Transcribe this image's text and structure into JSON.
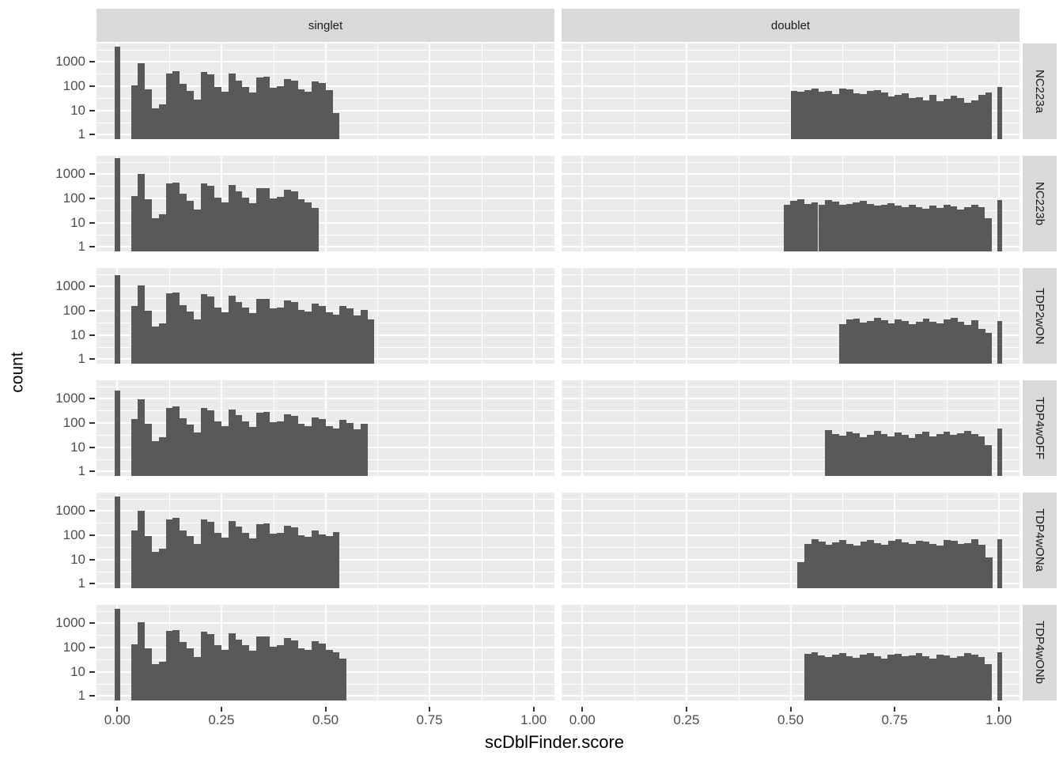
{
  "figure": {
    "x_axis_title": "scDblFinder.score",
    "y_axis_title": "count"
  },
  "chart_data": {
    "type": "bar",
    "subtype": "faceted-histogram-grid",
    "xlabel": "scDblFinder.score",
    "ylabel": "count",
    "y_scale": "log10",
    "grid": "on",
    "legend": "none",
    "col_facets": [
      "singlet",
      "doublet"
    ],
    "row_facets": [
      "NC223a",
      "NC223b",
      "TDP2wON",
      "TDP4wOFF",
      "TDP4wONa",
      "TDP4wONb"
    ],
    "x_ticks": [
      "0.00",
      "0.25",
      "0.50",
      "0.75",
      "1.00"
    ],
    "x_tick_values": [
      0,
      0.25,
      0.5,
      0.75,
      1.0
    ],
    "y_ticks": [
      "1000",
      "100",
      "10",
      "1"
    ],
    "y_tick_values": [
      1000,
      100,
      10,
      1
    ],
    "x_domain": [
      -0.05,
      1.05
    ],
    "y_log_domain": [
      -0.18,
      3.75
    ],
    "bin_width": 0.0167,
    "colors": {
      "bar": "#595959",
      "panel_bg": "#EBEBEB",
      "strip_bg": "#D9D9D9",
      "grid_line": "#FFFFFF",
      "axis_text": "#4D4D4D",
      "strip_text": "#1A1A1A",
      "title_text": "#000000"
    },
    "rows": [
      {
        "label": "NC223a",
        "singlet": {
          "zero_spike": {
            "x": -0.007,
            "w": 0.014,
            "count": 4200
          },
          "x0": 0.033,
          "counts": [
            110,
            850,
            75,
            12,
            18,
            330,
            400,
            120,
            65,
            28,
            370,
            300,
            95,
            60,
            330,
            170,
            95,
            55,
            230,
            240,
            85,
            100,
            200,
            170,
            75,
            60,
            160,
            130,
            70,
            8
          ]
        },
        "doublet": {
          "x0": 0.5,
          "counts": [
            65,
            60,
            70,
            78,
            60,
            65,
            48,
            80,
            72,
            52,
            48,
            62,
            70,
            55,
            38,
            42,
            52,
            32,
            36,
            26,
            42,
            24,
            30,
            40,
            32,
            20,
            26,
            45,
            55
          ],
          "one_spike": {
            "x": 0.996,
            "w": 0.012,
            "count": 95
          }
        }
      },
      {
        "label": "NC223b",
        "singlet": {
          "zero_spike": {
            "x": -0.007,
            "w": 0.014,
            "count": 4500
          },
          "x0": 0.033,
          "counts": [
            120,
            1000,
            90,
            15,
            22,
            400,
            450,
            150,
            80,
            35,
            420,
            330,
            110,
            70,
            350,
            200,
            110,
            65,
            260,
            270,
            100,
            115,
            230,
            190,
            90,
            70,
            40
          ]
        },
        "doublet": {
          "x0": 0.483,
          "counts": [
            55,
            80,
            90,
            60,
            70,
            55,
            85,
            75,
            55,
            60,
            70,
            80,
            60,
            50,
            55,
            65,
            50,
            42,
            55,
            45,
            38,
            50,
            40,
            55,
            48,
            36,
            42,
            55,
            45,
            15
          ],
          "one_spike": {
            "x": 0.996,
            "w": 0.012,
            "count": 85
          }
        }
      },
      {
        "label": "TDP2wON",
        "singlet": {
          "zero_spike": {
            "x": -0.007,
            "w": 0.014,
            "count": 2800
          },
          "x0": 0.033,
          "counts": [
            160,
            1100,
            100,
            22,
            30,
            500,
            550,
            170,
            95,
            45,
            480,
            380,
            130,
            85,
            400,
            230,
            130,
            80,
            300,
            310,
            120,
            130,
            260,
            220,
            105,
            90,
            200,
            160,
            85,
            70,
            150,
            120,
            65,
            110,
            45
          ]
        },
        "doublet": {
          "x0": 0.617,
          "counts": [
            28,
            42,
            48,
            32,
            38,
            50,
            40,
            30,
            45,
            38,
            28,
            35,
            48,
            36,
            30,
            44,
            50,
            34,
            26,
            40,
            18,
            12
          ],
          "one_spike": {
            "x": 0.996,
            "w": 0.012,
            "count": 38
          }
        }
      },
      {
        "label": "TDP4wOFF",
        "singlet": {
          "zero_spike": {
            "x": -0.007,
            "w": 0.014,
            "count": 2200
          },
          "x0": 0.033,
          "counts": [
            140,
            950,
            90,
            18,
            25,
            420,
            470,
            150,
            85,
            40,
            420,
            340,
            115,
            75,
            360,
            210,
            115,
            70,
            270,
            280,
            105,
            115,
            230,
            190,
            90,
            75,
            170,
            140,
            75,
            60,
            130,
            100,
            55,
            90
          ]
        },
        "doublet": {
          "x0": 0.583,
          "counts": [
            50,
            35,
            30,
            45,
            38,
            25,
            32,
            48,
            35,
            28,
            40,
            32,
            24,
            36,
            42,
            28,
            35,
            45,
            32,
            38,
            48,
            35,
            28,
            12
          ],
          "one_spike": {
            "x": 0.996,
            "w": 0.012,
            "count": 60
          }
        }
      },
      {
        "label": "TDP4wONa",
        "singlet": {
          "zero_spike": {
            "x": -0.007,
            "w": 0.014,
            "count": 4000
          },
          "x0": 0.033,
          "counts": [
            150,
            1000,
            95,
            20,
            28,
            450,
            500,
            160,
            90,
            42,
            450,
            360,
            125,
            80,
            380,
            220,
            125,
            75,
            290,
            300,
            115,
            125,
            250,
            210,
            100,
            85,
            150,
            110,
            90,
            130
          ]
        },
        "doublet": {
          "x0": 0.517,
          "counts": [
            8,
            45,
            70,
            55,
            40,
            50,
            62,
            45,
            38,
            55,
            65,
            48,
            40,
            58,
            68,
            50,
            42,
            60,
            55,
            42,
            38,
            65,
            58,
            42,
            48,
            66,
            40,
            12
          ],
          "one_spike": {
            "x": 0.996,
            "w": 0.012,
            "count": 70
          }
        }
      },
      {
        "label": "TDP4wONb",
        "singlet": {
          "zero_spike": {
            "x": -0.007,
            "w": 0.014,
            "count": 3800
          },
          "x0": 0.033,
          "counts": [
            130,
            1100,
            90,
            20,
            26,
            480,
            520,
            165,
            90,
            40,
            440,
            350,
            120,
            78,
            370,
            215,
            120,
            72,
            280,
            290,
            110,
            120,
            240,
            200,
            95,
            80,
            180,
            145,
            80,
            65,
            35
          ]
        },
        "doublet": {
          "x0": 0.533,
          "counts": [
            55,
            65,
            48,
            40,
            52,
            60,
            45,
            38,
            52,
            58,
            44,
            36,
            50,
            56,
            42,
            48,
            60,
            44,
            36,
            52,
            48,
            38,
            44,
            58,
            50,
            40,
            20
          ],
          "one_spike": {
            "x": 0.996,
            "w": 0.012,
            "count": 65
          }
        }
      }
    ]
  }
}
